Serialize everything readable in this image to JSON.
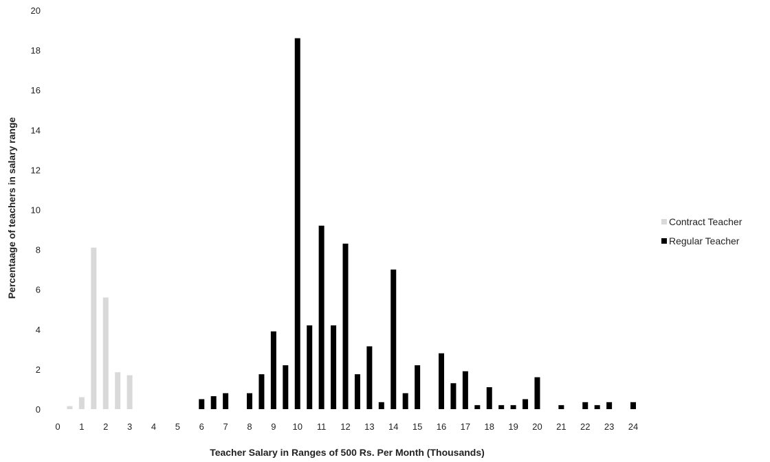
{
  "chart_data": {
    "type": "bar",
    "title": "",
    "xlabel": "Teacher Salary in Ranges of 500 Rs. Per Month (Thousands)",
    "ylabel": "Percentaage of teachers in salary range",
    "xlim": [
      0,
      24
    ],
    "ylim": [
      0,
      20
    ],
    "x_ticks": [
      0,
      1,
      2,
      3,
      4,
      5,
      6,
      7,
      8,
      9,
      10,
      11,
      12,
      13,
      14,
      15,
      16,
      17,
      18,
      19,
      20,
      21,
      22,
      23,
      24
    ],
    "y_ticks": [
      0,
      2,
      4,
      6,
      8,
      10,
      12,
      14,
      16,
      18,
      20
    ],
    "grid": false,
    "legend_position": "right",
    "series": [
      {
        "name": "Contract Teacher",
        "color": "#d9d9d9",
        "points": [
          {
            "x": 0.5,
            "y": 0.15
          },
          {
            "x": 1.0,
            "y": 0.6
          },
          {
            "x": 1.5,
            "y": 8.1
          },
          {
            "x": 2.0,
            "y": 5.6
          },
          {
            "x": 2.5,
            "y": 1.85
          },
          {
            "x": 3.0,
            "y": 1.7
          }
        ]
      },
      {
        "name": "Regular Teacher",
        "color": "#000000",
        "points": [
          {
            "x": 6.0,
            "y": 0.5
          },
          {
            "x": 6.5,
            "y": 0.65
          },
          {
            "x": 7.0,
            "y": 0.8
          },
          {
            "x": 8.0,
            "y": 0.8
          },
          {
            "x": 8.5,
            "y": 1.75
          },
          {
            "x": 9.0,
            "y": 3.9
          },
          {
            "x": 9.5,
            "y": 2.2
          },
          {
            "x": 10.0,
            "y": 18.6
          },
          {
            "x": 10.5,
            "y": 4.2
          },
          {
            "x": 11.0,
            "y": 9.2
          },
          {
            "x": 11.5,
            "y": 4.2
          },
          {
            "x": 12.0,
            "y": 8.3
          },
          {
            "x": 12.5,
            "y": 1.75
          },
          {
            "x": 13.0,
            "y": 3.15
          },
          {
            "x": 13.5,
            "y": 0.35
          },
          {
            "x": 14.0,
            "y": 7.0
          },
          {
            "x": 14.5,
            "y": 0.8
          },
          {
            "x": 15.0,
            "y": 2.2
          },
          {
            "x": 16.0,
            "y": 2.8
          },
          {
            "x": 16.5,
            "y": 1.3
          },
          {
            "x": 17.0,
            "y": 1.9
          },
          {
            "x": 17.5,
            "y": 0.2
          },
          {
            "x": 18.0,
            "y": 1.1
          },
          {
            "x": 18.5,
            "y": 0.2
          },
          {
            "x": 19.0,
            "y": 0.2
          },
          {
            "x": 19.5,
            "y": 0.5
          },
          {
            "x": 20.0,
            "y": 1.6
          },
          {
            "x": 21.0,
            "y": 0.2
          },
          {
            "x": 22.0,
            "y": 0.35
          },
          {
            "x": 22.5,
            "y": 0.2
          },
          {
            "x": 23.0,
            "y": 0.35
          },
          {
            "x": 24.0,
            "y": 0.35
          }
        ]
      }
    ]
  }
}
